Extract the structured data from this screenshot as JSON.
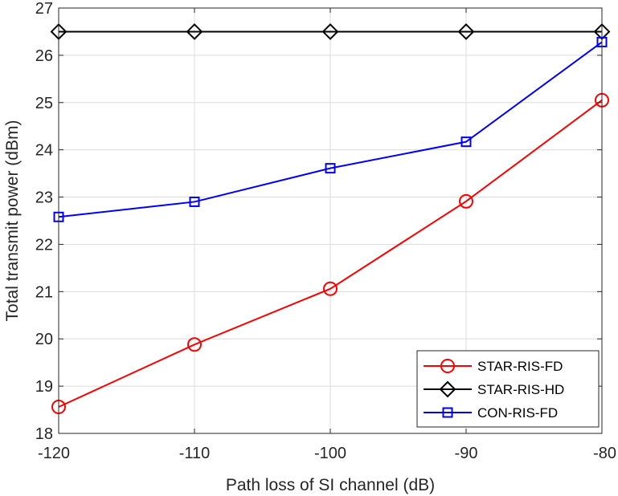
{
  "chart_data": {
    "type": "line",
    "title": "",
    "xlabel": "Path loss of SI channel (dB)",
    "ylabel": "Total transmit power (dBm)",
    "x": [
      -120,
      -110,
      -100,
      -90,
      -80
    ],
    "xlim": [
      -120,
      -80
    ],
    "ylim": [
      18,
      27
    ],
    "xticks": [
      "-120",
      "-110",
      "-100",
      "-90",
      "-80"
    ],
    "yticks": [
      "18",
      "19",
      "20",
      "21",
      "22",
      "23",
      "24",
      "25",
      "26",
      "27"
    ],
    "grid": true,
    "legend_position": "bottom-right",
    "series": [
      {
        "name": "STAR-RIS-FD",
        "color": "#ff0000",
        "marker": "circle",
        "values": [
          18.56,
          19.88,
          21.06,
          22.91,
          25.05
        ]
      },
      {
        "name": "STAR-RIS-HD",
        "color": "#000000",
        "marker": "diamond",
        "values": [
          26.5,
          26.5,
          26.5,
          26.5,
          26.5
        ]
      },
      {
        "name": "CON-RIS-FD",
        "color": "#0000ff",
        "marker": "square",
        "values": [
          22.58,
          22.9,
          23.61,
          24.17,
          26.28
        ]
      }
    ]
  }
}
